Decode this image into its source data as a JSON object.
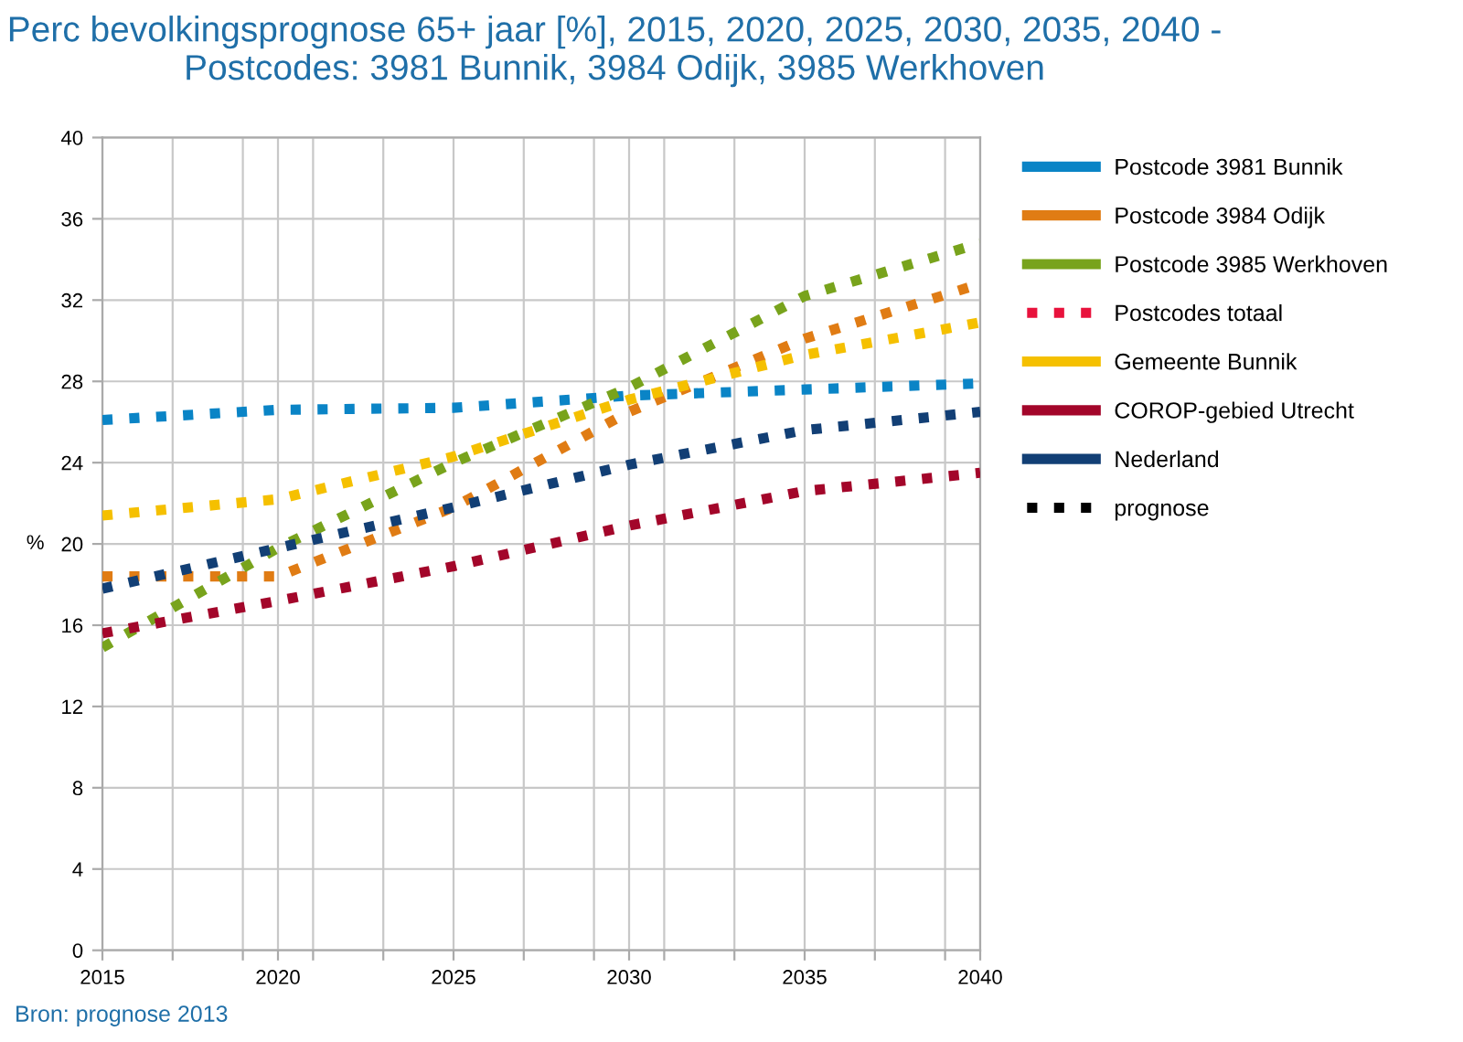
{
  "chart_data": {
    "type": "line",
    "title": "Perc bevolkingsprognose 65+ jaar [%], 2015, 2020, 2025, 2030, 2035, 2040 - Postcodes: 3981 Bunnik, 3984 Odijk, 3985 Werkhoven",
    "ylabel": "%",
    "x": [
      2015,
      2020,
      2025,
      2030,
      2035,
      2040
    ],
    "series": [
      {
        "name": "Postcode 3981 Bunnik",
        "color": "#0a84c6",
        "values": [
          26.1,
          26.6,
          26.7,
          27.3,
          27.6,
          27.9
        ]
      },
      {
        "name": "Postcode 3984 Odijk",
        "color": "#e07c14",
        "values": [
          18.4,
          18.4,
          21.8,
          26.5,
          30.1,
          32.8
        ]
      },
      {
        "name": "Postcode 3985 Werkhoven",
        "color": "#78a31c",
        "values": [
          14.9,
          19.8,
          24.0,
          27.7,
          32.2,
          34.8
        ]
      },
      {
        "name": "Postcodes totaal",
        "color": "#e8123c",
        "values": [
          null,
          null,
          null,
          null,
          null,
          null
        ]
      },
      {
        "name": "Gemeente Bunnik",
        "color": "#f5c000",
        "values": [
          21.4,
          22.2,
          24.3,
          27.1,
          29.3,
          30.9
        ]
      },
      {
        "name": "COROP-gebied Utrecht",
        "color": "#a3062a",
        "values": [
          15.6,
          17.2,
          18.9,
          20.9,
          22.6,
          23.5
        ]
      },
      {
        "name": "Nederland",
        "color": "#123f75",
        "values": [
          17.8,
          19.8,
          21.8,
          23.9,
          25.6,
          26.5
        ]
      },
      {
        "name": "prognose",
        "color": "#000000",
        "values": [
          null,
          null,
          null,
          null,
          null,
          null
        ]
      }
    ],
    "line_style": "dotted",
    "marker": "none",
    "xlim": [
      2015,
      2040
    ],
    "xticks": [
      2015,
      {
        "value": 2017,
        "label": null
      },
      {
        "value": 2019,
        "label": null
      },
      2020,
      {
        "value": 2021,
        "label": null
      },
      {
        "value": 2023,
        "label": null
      },
      2025,
      {
        "value": 2027,
        "label": null
      },
      {
        "value": 2029,
        "label": null
      },
      2030,
      {
        "value": 2031,
        "label": null
      },
      {
        "value": 2033,
        "label": null
      },
      2035,
      {
        "value": 2037,
        "label": null
      },
      {
        "value": 2039,
        "label": null
      },
      2040
    ],
    "ylim": [
      0,
      40
    ],
    "yticks": [
      0,
      4,
      8,
      12,
      16,
      20,
      24,
      28,
      32,
      36,
      40
    ],
    "grid": true,
    "legend": "right",
    "annotations": [
      "Bron: prognose 2013"
    ]
  }
}
